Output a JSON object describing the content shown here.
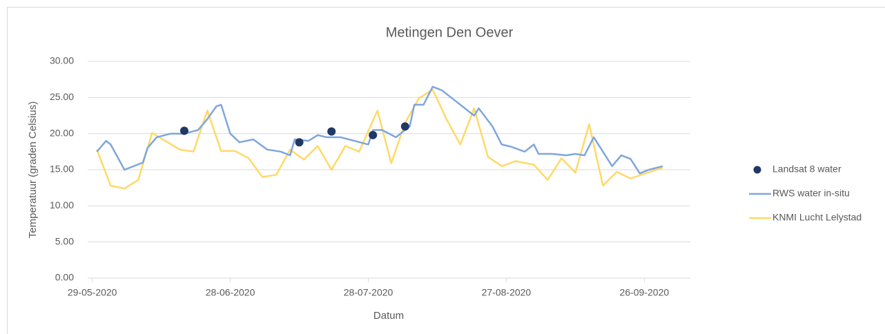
{
  "chart_data": {
    "type": "line",
    "title": "Metingen Den Oever",
    "xlabel": "Datum",
    "ylabel": "Temperatuur (graden Celsius)",
    "xlim": [
      "28-05-2020",
      "06-10-2020"
    ],
    "xticks": [
      "29-05-2020",
      "28-06-2020",
      "28-07-2020",
      "27-08-2020",
      "26-09-2020"
    ],
    "ylim": [
      0,
      30
    ],
    "yticks": [
      {
        "value": 0,
        "label": "0.00"
      },
      {
        "value": 5,
        "label": "5.00"
      },
      {
        "value": 10,
        "label": "10.00"
      },
      {
        "value": 15,
        "label": "15.00"
      },
      {
        "value": 20,
        "label": "20.00"
      },
      {
        "value": 25,
        "label": "25.00"
      },
      {
        "value": 30,
        "label": "30.00"
      }
    ],
    "grid": true,
    "legend": "right",
    "series": [
      {
        "name": "Landsat 8 water",
        "type": "scatter",
        "color": "#203864",
        "x": [
          "18-06-2020",
          "13-07-2020",
          "20-07-2020",
          "29-07-2020",
          "05-08-2020"
        ],
        "values": [
          20.4,
          18.8,
          20.3,
          19.8,
          21.0
        ]
      },
      {
        "name": "RWS water in-situ",
        "type": "line",
        "color": "#7ea6dc",
        "x": [
          "30-05-2020",
          "01-06-2020",
          "02-06-2020",
          "05-06-2020",
          "07-06-2020",
          "09-06-2020",
          "10-06-2020",
          "12-06-2020",
          "15-06-2020",
          "18-06-2020",
          "21-06-2020",
          "23-06-2020",
          "25-06-2020",
          "26-06-2020",
          "28-06-2020",
          "30-06-2020",
          "03-07-2020",
          "06-07-2020",
          "09-07-2020",
          "11-07-2020",
          "12-07-2020",
          "15-07-2020",
          "17-07-2020",
          "19-07-2020",
          "22-07-2020",
          "25-07-2020",
          "28-07-2020",
          "29-07-2020",
          "31-07-2020",
          "03-08-2020",
          "06-08-2020",
          "07-08-2020",
          "09-08-2020",
          "11-08-2020",
          "13-08-2020",
          "15-08-2020",
          "18-08-2020",
          "20-08-2020",
          "21-08-2020",
          "24-08-2020",
          "26-08-2020",
          "28-08-2020",
          "31-08-2020",
          "02-09-2020",
          "03-09-2020",
          "06-09-2020",
          "09-09-2020",
          "11-09-2020",
          "13-09-2020",
          "15-09-2020",
          "17-09-2020",
          "19-09-2020",
          "21-09-2020",
          "23-09-2020",
          "25-09-2020",
          "27-09-2020",
          "30-09-2020"
        ],
        "values": [
          17.5,
          19.0,
          18.5,
          15.0,
          15.5,
          16.0,
          18.0,
          19.5,
          20.0,
          20.0,
          20.5,
          22.0,
          23.8,
          24.0,
          20.0,
          18.8,
          19.2,
          17.8,
          17.5,
          17.0,
          19.2,
          19.0,
          19.8,
          19.5,
          19.5,
          19.0,
          18.5,
          20.5,
          20.5,
          19.5,
          21.0,
          24.0,
          24.0,
          26.5,
          26.0,
          25.0,
          23.5,
          22.5,
          23.5,
          21.0,
          18.5,
          18.2,
          17.5,
          18.5,
          17.2,
          17.2,
          17.0,
          17.2,
          17.0,
          19.5,
          17.5,
          15.5,
          17.0,
          16.5,
          14.5,
          15.0,
          15.5
        ]
      },
      {
        "name": "KNMI Lucht Lelystad",
        "type": "line",
        "color": "#ffd966",
        "x": [
          "30-05-2020",
          "02-06-2020",
          "05-06-2020",
          "08-06-2020",
          "11-06-2020",
          "17-06-2020",
          "20-06-2020",
          "23-06-2020",
          "26-06-2020",
          "29-06-2020",
          "02-07-2020",
          "05-07-2020",
          "08-07-2020",
          "11-07-2020",
          "14-07-2020",
          "17-07-2020",
          "20-07-2020",
          "23-07-2020",
          "26-07-2020",
          "30-07-2020",
          "02-08-2020",
          "05-08-2020",
          "08-08-2020",
          "11-08-2020",
          "14-08-2020",
          "17-08-2020",
          "20-08-2020",
          "23-08-2020",
          "26-08-2020",
          "29-08-2020",
          "02-09-2020",
          "05-09-2020",
          "08-09-2020",
          "11-09-2020",
          "14-09-2020",
          "17-09-2020",
          "20-09-2020",
          "23-09-2020",
          "30-09-2020"
        ],
        "values": [
          17.8,
          12.8,
          12.4,
          13.6,
          20.1,
          17.8,
          17.5,
          23.2,
          17.6,
          17.6,
          16.6,
          14.0,
          14.3,
          17.8,
          16.4,
          18.3,
          15.0,
          18.3,
          17.5,
          23.2,
          15.9,
          21.5,
          24.9,
          26.1,
          22.0,
          18.5,
          23.5,
          16.8,
          15.5,
          16.2,
          15.7,
          13.6,
          16.6,
          14.6,
          21.3,
          12.8,
          14.7,
          13.8,
          15.3
        ]
      }
    ]
  }
}
